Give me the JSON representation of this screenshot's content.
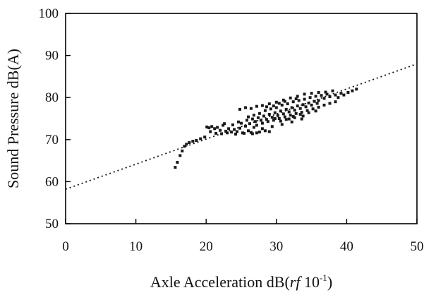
{
  "chart_data": {
    "type": "scatter",
    "title": "",
    "xlabel_main": "Axle Acceleration dB(",
    "xlabel_italic": "rf",
    "xlabel_ten": " 10",
    "xlabel_sup": "-1",
    "xlabel_close": ")",
    "ylabel": "Sound Pressure dB(A)",
    "xlim": [
      0,
      50
    ],
    "ylim": [
      50,
      100
    ],
    "xticks": [
      0,
      10,
      20,
      30,
      40,
      50
    ],
    "yticks": [
      50,
      60,
      70,
      80,
      90,
      100
    ],
    "grid": false,
    "legend": "none",
    "trendline": {
      "style": "dotted",
      "x": [
        0,
        50
      ],
      "y": [
        58.2,
        88.0
      ]
    },
    "series": [
      {
        "points": [
          [
            15.6,
            63.4
          ],
          [
            15.9,
            64.6
          ],
          [
            16.3,
            66.2
          ],
          [
            16.6,
            67.3
          ],
          [
            16.9,
            68.4
          ],
          [
            17.2,
            68.9
          ],
          [
            17.6,
            69.3
          ],
          [
            18.1,
            69.6
          ],
          [
            18.6,
            69.8
          ],
          [
            19.2,
            70.2
          ],
          [
            19.8,
            70.6
          ],
          [
            20.1,
            73.0
          ],
          [
            20.4,
            72.8
          ],
          [
            20.8,
            73.1
          ],
          [
            21.2,
            72.6
          ],
          [
            21.6,
            72.9
          ],
          [
            22.0,
            72.2
          ],
          [
            22.4,
            73.4
          ],
          [
            22.8,
            72.0
          ],
          [
            23.2,
            72.6
          ],
          [
            23.6,
            71.8
          ],
          [
            24.0,
            72.4
          ],
          [
            24.4,
            71.9
          ],
          [
            24.8,
            72.7
          ],
          [
            25.2,
            71.6
          ],
          [
            25.6,
            73.2
          ],
          [
            26.0,
            72.1
          ],
          [
            26.4,
            71.7
          ],
          [
            26.8,
            72.9
          ],
          [
            27.2,
            71.6
          ],
          [
            20.6,
            71.9
          ],
          [
            21.4,
            71.5
          ],
          [
            22.2,
            71.4
          ],
          [
            23.0,
            71.6
          ],
          [
            24.2,
            71.3
          ],
          [
            25.4,
            71.5
          ],
          [
            26.6,
            71.4
          ],
          [
            27.6,
            71.8
          ],
          [
            28.4,
            72.1
          ],
          [
            29.0,
            71.9
          ],
          [
            22.6,
            73.8
          ],
          [
            23.8,
            73.5
          ],
          [
            24.6,
            74.2
          ],
          [
            25.0,
            73.9
          ],
          [
            25.8,
            74.6
          ],
          [
            26.2,
            73.8
          ],
          [
            26.6,
            74.9
          ],
          [
            27.0,
            74.3
          ],
          [
            27.4,
            75.2
          ],
          [
            27.8,
            74.6
          ],
          [
            28.2,
            75.6
          ],
          [
            28.6,
            74.8
          ],
          [
            29.0,
            76.0
          ],
          [
            29.4,
            75.3
          ],
          [
            29.8,
            76.4
          ],
          [
            30.2,
            75.7
          ],
          [
            30.6,
            76.8
          ],
          [
            31.0,
            76.1
          ],
          [
            31.4,
            77.2
          ],
          [
            31.8,
            76.6
          ],
          [
            32.2,
            77.6
          ],
          [
            32.6,
            77.0
          ],
          [
            33.0,
            78.0
          ],
          [
            33.4,
            77.4
          ],
          [
            33.8,
            78.3
          ],
          [
            34.2,
            77.8
          ],
          [
            34.6,
            78.7
          ],
          [
            35.0,
            78.2
          ],
          [
            35.4,
            79.1
          ],
          [
            35.8,
            78.6
          ],
          [
            26.0,
            75.4
          ],
          [
            26.8,
            75.8
          ],
          [
            27.6,
            76.2
          ],
          [
            28.4,
            76.9
          ],
          [
            29.2,
            77.3
          ],
          [
            30.0,
            77.6
          ],
          [
            30.8,
            78.2
          ],
          [
            31.6,
            78.5
          ],
          [
            32.4,
            79.0
          ],
          [
            33.2,
            79.3
          ],
          [
            34.0,
            79.6
          ],
          [
            34.8,
            80.0
          ],
          [
            35.6,
            80.3
          ],
          [
            36.4,
            80.5
          ],
          [
            37.2,
            80.8
          ],
          [
            27.2,
            73.4
          ],
          [
            28.0,
            73.9
          ],
          [
            28.8,
            74.3
          ],
          [
            29.6,
            74.6
          ],
          [
            30.4,
            75.0
          ],
          [
            31.2,
            75.4
          ],
          [
            32.0,
            75.8
          ],
          [
            32.8,
            76.2
          ],
          [
            33.6,
            76.5
          ],
          [
            34.4,
            76.9
          ],
          [
            35.2,
            77.3
          ],
          [
            36.0,
            77.7
          ],
          [
            36.8,
            78.2
          ],
          [
            37.6,
            78.6
          ],
          [
            38.4,
            79.0
          ],
          [
            28.0,
            72.6
          ],
          [
            29.4,
            73.1
          ],
          [
            30.8,
            73.6
          ],
          [
            32.2,
            74.2
          ],
          [
            33.6,
            74.9
          ],
          [
            24.8,
            77.2
          ],
          [
            25.6,
            77.6
          ],
          [
            26.4,
            77.4
          ],
          [
            27.2,
            77.9
          ],
          [
            28.0,
            78.1
          ],
          [
            36.0,
            79.3
          ],
          [
            36.8,
            79.8
          ],
          [
            37.6,
            80.2
          ],
          [
            38.4,
            80.6
          ],
          [
            39.2,
            81.0
          ],
          [
            38.8,
            80.0
          ],
          [
            39.6,
            80.6
          ],
          [
            40.2,
            81.2
          ],
          [
            40.8,
            81.6
          ],
          [
            41.4,
            82.0
          ],
          [
            29.0,
            78.5
          ],
          [
            30.0,
            78.9
          ],
          [
            31.0,
            79.4
          ],
          [
            32.0,
            79.9
          ],
          [
            33.0,
            80.3
          ],
          [
            34.0,
            80.8
          ],
          [
            35.0,
            81.0
          ],
          [
            36.0,
            81.2
          ],
          [
            37.0,
            81.3
          ],
          [
            38.0,
            81.6
          ],
          [
            31.4,
            74.8
          ],
          [
            32.4,
            75.5
          ],
          [
            33.4,
            76.0
          ],
          [
            34.6,
            76.4
          ],
          [
            35.6,
            76.8
          ],
          [
            29.8,
            75.0
          ],
          [
            30.6,
            74.4
          ],
          [
            31.8,
            74.9
          ],
          [
            32.6,
            75.2
          ],
          [
            33.8,
            75.6
          ],
          [
            28.6,
            77.8
          ],
          [
            29.6,
            78.0
          ],
          [
            30.4,
            78.6
          ],
          [
            31.2,
            79.1
          ],
          [
            32.8,
            79.7
          ]
        ]
      }
    ]
  }
}
